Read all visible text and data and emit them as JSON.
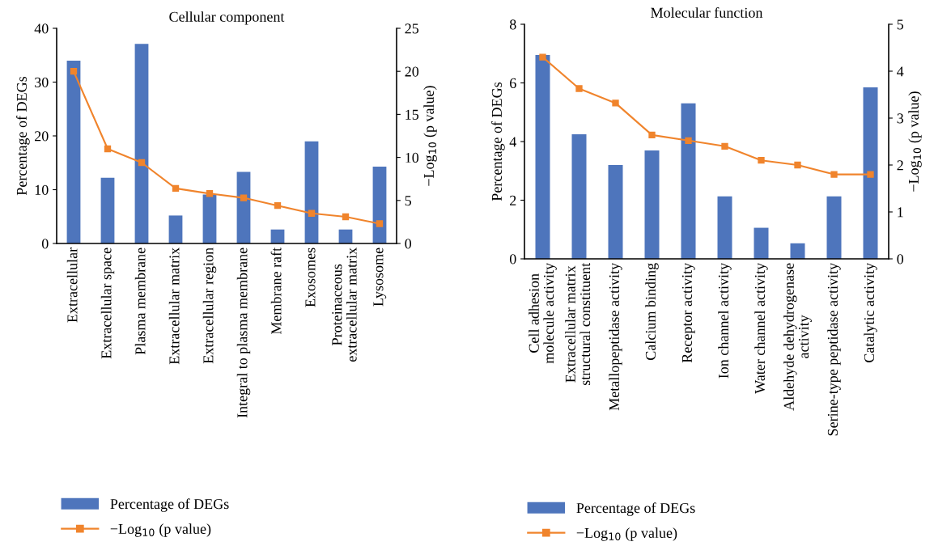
{
  "chart_data": [
    {
      "type": "bar",
      "title": "Cellular component",
      "ylabel": "Percentage of DEGs",
      "y2label": "−Log$_{10}$ (p value)",
      "categories": [
        "Extracellular",
        "Extracellular space",
        "Plasma membrane",
        "Extracellular matrix",
        "Extracellular region",
        "Integral to plasma membrane",
        "Membrane raft",
        "Exosomes",
        "Proteinaceous\nextracellular matrix",
        "Lysosome"
      ],
      "series": [
        {
          "name": "Percentage of DEGs",
          "color": "#4e75bc",
          "values": [
            34,
            12.2,
            37.1,
            5.2,
            9.1,
            13.3,
            2.6,
            19,
            2.6,
            14.3
          ]
        },
        {
          "name": "−Log$_{10}$ (p value)",
          "type": "line",
          "axis": "y2",
          "color": "#f0842c",
          "marker": "square",
          "values": [
            20,
            11,
            9.4,
            6.4,
            5.8,
            5.3,
            4.4,
            3.5,
            3.1,
            2.3
          ]
        }
      ],
      "ylim": [
        0,
        40
      ],
      "yticks": [
        0,
        10,
        20,
        30,
        40
      ],
      "y2lim": [
        0,
        25
      ],
      "y2ticks": [
        0,
        5,
        10,
        15,
        20,
        25
      ],
      "grid": false,
      "legend": "bottom"
    },
    {
      "type": "bar",
      "title": "Molecular function",
      "ylabel": "Percentage of DEGs",
      "y2label": "−Log$_{10}$ (p value)",
      "categories": [
        "Cell adhesion\nmolecule activity",
        "Extracellular matrix\nstructural constituent",
        "Metallopeptidase activity",
        "Calcium binding",
        "Receptor activity",
        "Ion channel activity",
        "Water channel activity",
        "Aldehyde dehydrogenase\nactivity",
        "Serine-type peptidase activity",
        "Catalytic activity"
      ],
      "series": [
        {
          "name": "Percentage of DEGs",
          "color": "#4e75bc",
          "values": [
            6.95,
            4.25,
            3.2,
            3.7,
            5.3,
            2.13,
            1.06,
            0.53,
            2.13,
            5.85
          ]
        },
        {
          "name": "−Log$_{10}$ (p value)",
          "type": "line",
          "axis": "y2",
          "color": "#f0842c",
          "marker": "square",
          "values": [
            4.3,
            3.63,
            3.32,
            2.64,
            2.52,
            2.4,
            2.1,
            2.0,
            1.8,
            1.8
          ]
        }
      ],
      "ylim": [
        0,
        8
      ],
      "yticks": [
        0,
        2,
        4,
        6,
        8
      ],
      "y2lim": [
        0,
        5
      ],
      "y2ticks": [
        0,
        1,
        2,
        3,
        4,
        5
      ],
      "grid": false,
      "legend": "bottom"
    }
  ]
}
